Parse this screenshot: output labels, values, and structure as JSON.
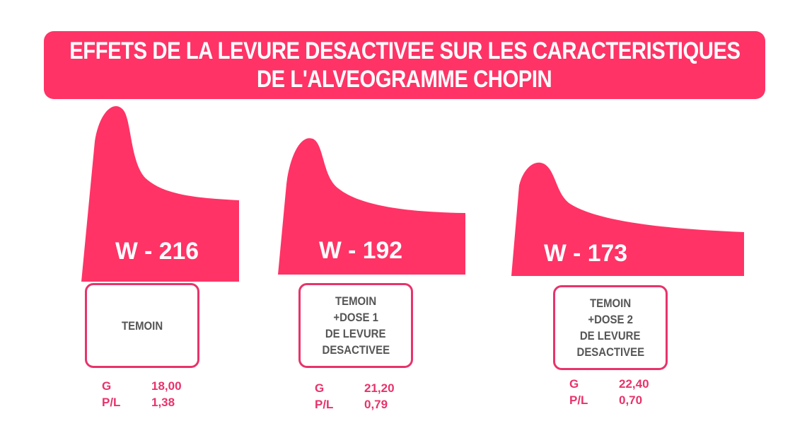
{
  "title": {
    "line1": "EFFETS DE LA LEVURE DESACTIVEE SUR LES CARACTERISTIQUES",
    "line2": "DE L'ALVEOGRAMME CHOPIN"
  },
  "colors": {
    "accent": "#ff3366",
    "box_border": "#e8336b",
    "box_text": "#555555"
  },
  "samples": [
    {
      "w_label": "W - 216",
      "w_value": 216,
      "box_lines": [
        "TEMOIN"
      ],
      "stats": [
        {
          "key": "G",
          "value": "18,00"
        },
        {
          "key": "P/L",
          "value": "1,38"
        }
      ]
    },
    {
      "w_label": "W - 192",
      "w_value": 192,
      "box_lines": [
        "TEMOIN",
        "+DOSE 1",
        "DE LEVURE",
        "DESACTIVEE"
      ],
      "stats": [
        {
          "key": "G",
          "value": "21,20"
        },
        {
          "key": "P/L",
          "value": "0,79"
        }
      ]
    },
    {
      "w_label": "W - 173",
      "w_value": 173,
      "box_lines": [
        "TEMOIN",
        "+DOSE 2",
        "DE LEVURE",
        "DESACTIVEE"
      ],
      "stats": [
        {
          "key": "G",
          "value": "22,40"
        },
        {
          "key": "P/L",
          "value": "0,70"
        }
      ]
    }
  ]
}
